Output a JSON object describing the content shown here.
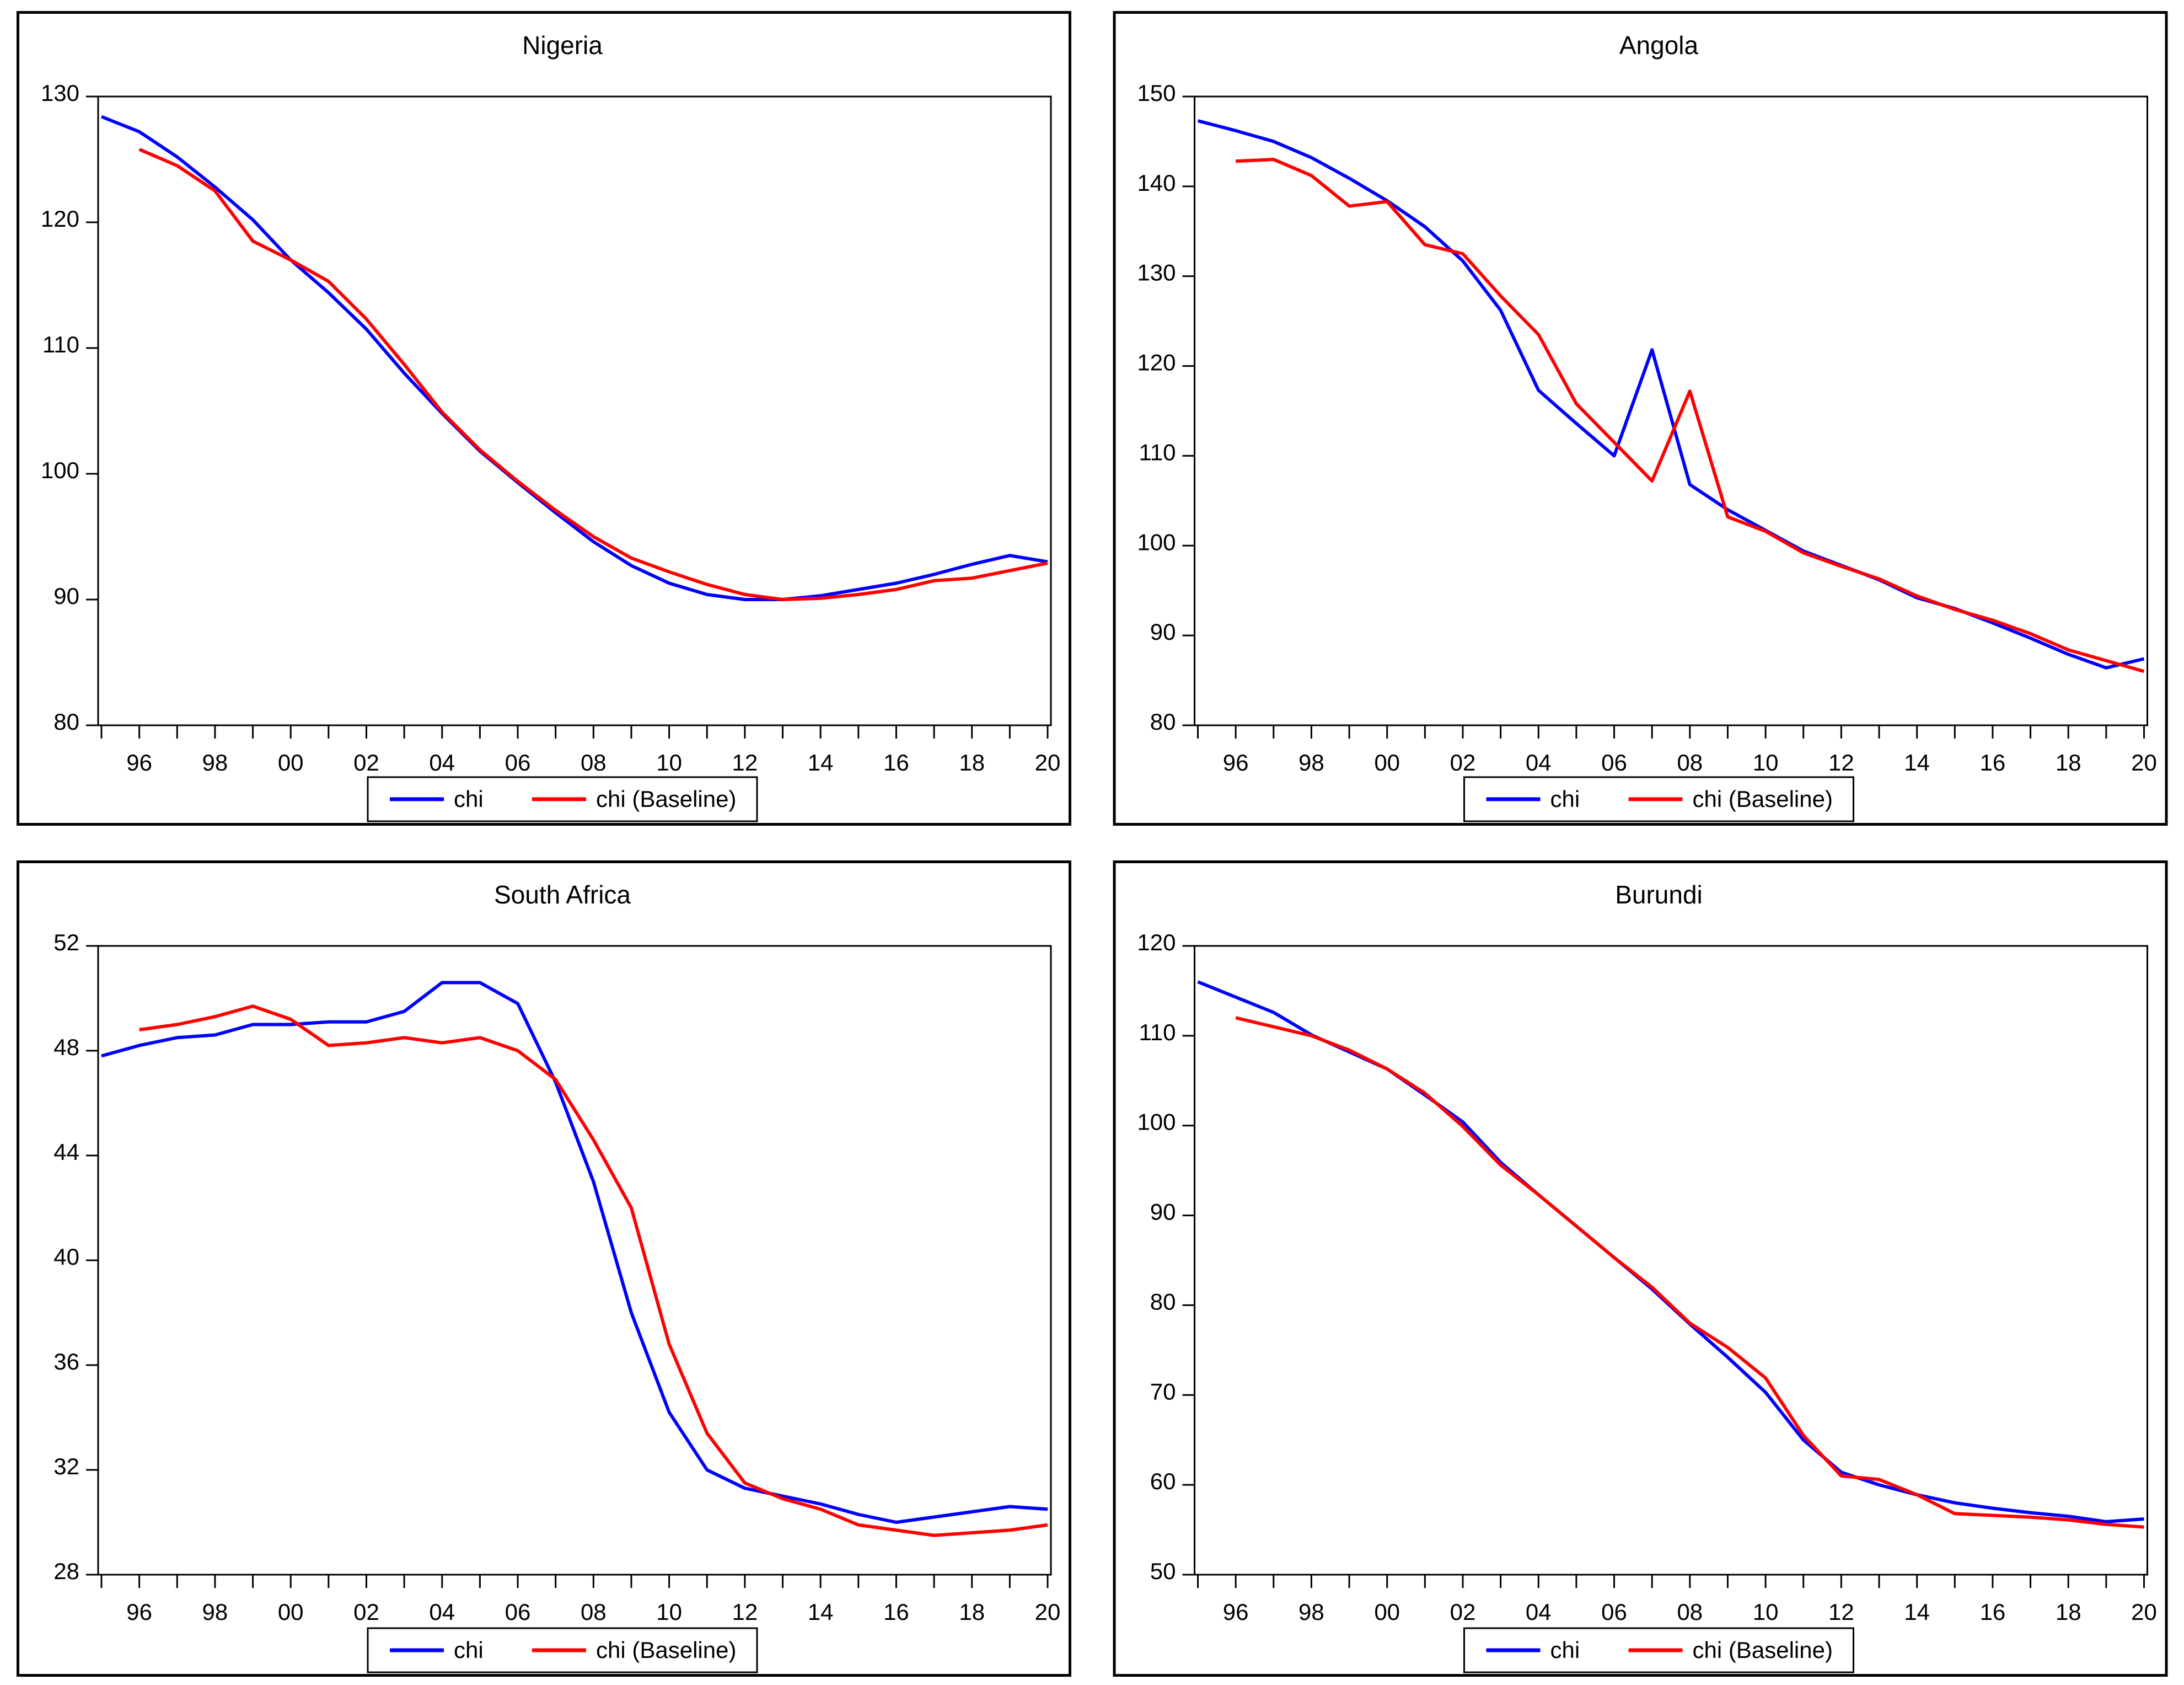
{
  "colors": {
    "chi": "#0000ff",
    "baseline": "#ff0000",
    "axis": "#000000",
    "background": "#ffffff"
  },
  "legend": {
    "chi_label": "chi",
    "baseline_label": "chi (Baseline)"
  },
  "chart_data": [
    {
      "type": "line",
      "title": "Nigeria",
      "ylim": [
        80,
        130
      ],
      "yticks": [
        80,
        90,
        100,
        110,
        120,
        130
      ],
      "y_tick_labels": [
        "80",
        "90",
        "100",
        "110",
        "120",
        "130"
      ],
      "x_range": [
        1995,
        2020
      ],
      "x_tick_labels": [
        "96",
        "98",
        "00",
        "02",
        "04",
        "06",
        "08",
        "10",
        "12",
        "14",
        "16",
        "18",
        "20"
      ],
      "grid": false,
      "legend_position": "bottom-center",
      "legend": [
        "chi",
        "chi (Baseline)"
      ],
      "series": [
        {
          "name": "chi",
          "color": "#0000ff",
          "start_year": 1995,
          "values": [
            128.4,
            127.2,
            125.2,
            122.8,
            120.2,
            117.0,
            114.4,
            111.5,
            108.0,
            104.8,
            101.8,
            99.3,
            96.9,
            94.6,
            92.7,
            91.3,
            90.4,
            90.0,
            90.0,
            90.3,
            90.8,
            91.3,
            92.0,
            92.8,
            93.5,
            93.0
          ]
        },
        {
          "name": "chi (Baseline)",
          "color": "#ff0000",
          "start_year": 1996,
          "values": [
            125.8,
            124.5,
            122.5,
            118.5,
            117.0,
            115.3,
            112.3,
            108.7,
            104.9,
            101.9,
            99.4,
            97.1,
            95.0,
            93.3,
            92.2,
            91.2,
            90.4,
            90.0,
            90.1,
            90.4,
            90.8,
            91.5,
            91.7,
            92.3,
            92.9
          ]
        }
      ]
    },
    {
      "type": "line",
      "title": "Angola",
      "ylim": [
        80,
        150
      ],
      "yticks": [
        80,
        90,
        100,
        110,
        120,
        130,
        140,
        150
      ],
      "y_tick_labels": [
        "80",
        "90",
        "100",
        "110",
        "120",
        "130",
        "140",
        "150"
      ],
      "x_range": [
        1995,
        2020
      ],
      "x_tick_labels": [
        "96",
        "98",
        "00",
        "02",
        "04",
        "06",
        "08",
        "10",
        "12",
        "14",
        "16",
        "18",
        "20"
      ],
      "grid": false,
      "legend_position": "bottom-center",
      "legend": [
        "chi",
        "chi (Baseline)"
      ],
      "series": [
        {
          "name": "chi",
          "color": "#0000ff",
          "start_year": 1995,
          "values": [
            147.3,
            146.2,
            145.0,
            143.2,
            140.9,
            138.4,
            135.5,
            131.7,
            126.2,
            117.3,
            113.6,
            110.0,
            121.8,
            106.8,
            104.0,
            101.7,
            99.4,
            97.8,
            96.2,
            94.2,
            93.0,
            91.4,
            89.7,
            87.9,
            86.4,
            87.4
          ]
        },
        {
          "name": "chi (Baseline)",
          "color": "#ff0000",
          "start_year": 1996,
          "values": [
            142.8,
            143.0,
            141.2,
            137.8,
            138.3,
            133.5,
            132.5,
            127.8,
            123.5,
            115.8,
            111.5,
            107.2,
            117.2,
            103.2,
            101.6,
            99.2,
            97.7,
            96.3,
            94.4,
            92.9,
            91.7,
            90.2,
            88.4,
            87.2,
            86.0
          ]
        }
      ]
    },
    {
      "type": "line",
      "title": "South Africa",
      "ylim": [
        28,
        52
      ],
      "yticks": [
        28,
        32,
        36,
        40,
        44,
        48,
        52
      ],
      "y_tick_labels": [
        "28",
        "32",
        "36",
        "40",
        "44",
        "48",
        "52"
      ],
      "x_range": [
        1995,
        2020
      ],
      "x_tick_labels": [
        "96",
        "98",
        "00",
        "02",
        "04",
        "06",
        "08",
        "10",
        "12",
        "14",
        "16",
        "18",
        "20"
      ],
      "grid": false,
      "legend_position": "bottom-center",
      "legend": [
        "chi",
        "chi (Baseline)"
      ],
      "series": [
        {
          "name": "chi",
          "color": "#0000ff",
          "start_year": 1995,
          "values": [
            47.8,
            48.2,
            48.5,
            48.6,
            49.0,
            49.0,
            49.1,
            49.1,
            49.5,
            50.6,
            50.6,
            49.8,
            46.8,
            43.0,
            38.0,
            34.2,
            32.0,
            31.3,
            31.0,
            30.7,
            30.3,
            30.0,
            30.2,
            30.4,
            30.6,
            30.5
          ]
        },
        {
          "name": "chi (Baseline)",
          "color": "#ff0000",
          "start_year": 1996,
          "values": [
            48.8,
            49.0,
            49.3,
            49.7,
            49.2,
            48.2,
            48.3,
            48.5,
            48.3,
            48.5,
            48.0,
            46.9,
            44.6,
            42.0,
            36.8,
            33.4,
            31.5,
            30.9,
            30.5,
            29.9,
            29.7,
            29.5,
            29.6,
            29.7,
            29.9
          ]
        }
      ]
    },
    {
      "type": "line",
      "title": "Burundi",
      "ylim": [
        50,
        120
      ],
      "yticks": [
        50,
        60,
        70,
        80,
        90,
        100,
        110,
        120
      ],
      "y_tick_labels": [
        "50",
        "60",
        "70",
        "80",
        "90",
        "100",
        "110",
        "120"
      ],
      "x_range": [
        1995,
        2020
      ],
      "x_tick_labels": [
        "96",
        "98",
        "00",
        "02",
        "04",
        "06",
        "08",
        "10",
        "12",
        "14",
        "16",
        "18",
        "20"
      ],
      "grid": false,
      "legend_position": "bottom-center",
      "legend": [
        "chi",
        "chi (Baseline)"
      ],
      "series": [
        {
          "name": "chi",
          "color": "#0000ff",
          "start_year": 1995,
          "values": [
            116.0,
            114.3,
            112.6,
            110.1,
            108.2,
            106.3,
            103.4,
            100.4,
            95.9,
            92.3,
            88.8,
            85.3,
            81.8,
            77.9,
            74.2,
            70.3,
            65.0,
            61.4,
            60.0,
            58.9,
            58.0,
            57.4,
            56.9,
            56.5,
            55.9,
            56.2
          ]
        },
        {
          "name": "chi (Baseline)",
          "color": "#ff0000",
          "start_year": 1996,
          "values": [
            112.0,
            111.0,
            110.0,
            108.4,
            106.3,
            103.6,
            99.9,
            95.6,
            92.3,
            88.8,
            85.3,
            82.0,
            78.0,
            75.3,
            71.9,
            65.5,
            61.0,
            60.6,
            58.9,
            56.8,
            56.6,
            56.4,
            56.1,
            55.6,
            55.3
          ]
        }
      ]
    }
  ]
}
